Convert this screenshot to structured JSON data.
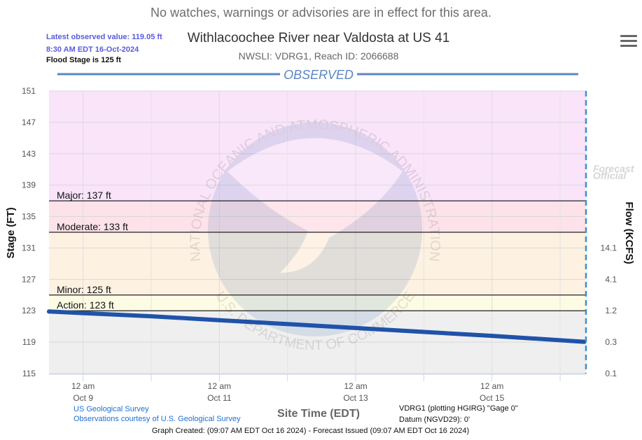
{
  "notice": "No watches, warnings or advisories are in effect for this area.",
  "header": {
    "latest_label": "Latest observed value: 119.05 ft",
    "latest_time": "8:30 AM EDT 16-Oct-2024",
    "flood_stage": "Flood Stage is 125 ft",
    "title": "Withlacoochee River near Valdosta at US 41",
    "subtitle": "NWSLI: VDRG1, Reach ID: 2066688"
  },
  "colors": {
    "observed": "#2052a8",
    "band_above": "#f9e4fa",
    "band_major": "#fde2e9",
    "band_moderate": "#fdf1e2",
    "band_minor": "#fdfbe4",
    "band_below": "#efefef",
    "forecast_line": "#3a8fd0",
    "title_observed": "#5b86c5"
  },
  "chart_data": {
    "type": "line",
    "observed_label": "OBSERVED",
    "forecast_label_1": "Forecast",
    "forecast_label_2": "Official",
    "y_left": {
      "label": "Stage (FT)",
      "ticks": [
        115,
        119,
        123,
        127,
        131,
        135,
        139,
        143,
        147,
        151
      ],
      "range": [
        115,
        151
      ]
    },
    "y_right": {
      "label": "Flow (KCFS)",
      "ticks": [
        {
          "stage": 131,
          "label": "14.1"
        },
        {
          "stage": 127,
          "label": "4.1"
        },
        {
          "stage": 123,
          "label": "1.2"
        },
        {
          "stage": 119,
          "label": "0.3"
        },
        {
          "stage": 115,
          "label": "0.1"
        }
      ]
    },
    "x": {
      "label": "Site Time (EDT)",
      "range_days": [
        "Oct 8 12:00",
        "Oct 16 09:07"
      ],
      "ticks": [
        {
          "time": "Oct 9 00:00",
          "line1": "12 am",
          "line2": "Oct 9"
        },
        {
          "time": "Oct 11 00:00",
          "line1": "12 am",
          "line2": "Oct 11"
        },
        {
          "time": "Oct 13 00:00",
          "line1": "12 am",
          "line2": "Oct 13"
        },
        {
          "time": "Oct 15 00:00",
          "line1": "12 am",
          "line2": "Oct 15"
        }
      ],
      "minor_ticks": [
        "Oct 10 00:00",
        "Oct 12 00:00",
        "Oct 14 00:00",
        "Oct 16 00:00"
      ]
    },
    "thresholds": [
      {
        "name": "Major",
        "label": "Major: 137 ft",
        "value": 137
      },
      {
        "name": "Moderate",
        "label": "Moderate: 133 ft",
        "value": 133
      },
      {
        "name": "Minor",
        "label": "Minor: 125 ft",
        "value": 125
      },
      {
        "name": "Action",
        "label": "Action: 123 ft",
        "value": 123
      }
    ],
    "observed": [
      {
        "time": "Oct 8 12:00",
        "stage": 122.9
      },
      {
        "time": "Oct 9 00:00",
        "stage": 122.7
      },
      {
        "time": "Oct 10 00:00",
        "stage": 122.3
      },
      {
        "time": "Oct 11 00:00",
        "stage": 121.8
      },
      {
        "time": "Oct 12 00:00",
        "stage": 121.3
      },
      {
        "time": "Oct 13 00:00",
        "stage": 120.8
      },
      {
        "time": "Oct 14 00:00",
        "stage": 120.3
      },
      {
        "time": "Oct 15 00:00",
        "stage": 119.8
      },
      {
        "time": "Oct 16 08:30",
        "stage": 119.05
      }
    ],
    "forecast_issued": "Oct 16 09:07"
  },
  "watermark": {
    "logo_text": "NOAA",
    "top_arc": "NATIONAL OCEANIC AND ATMOSPHERIC ADMINISTRATION",
    "bottom_arc": "U.S. DEPARTMENT OF COMMERCE"
  },
  "footer": {
    "source_1": "US Geological Survey",
    "source_2": "Observations courtesy of U.S. Geological Survey",
    "datum_1": "VDRG1 (plotting HGIRG) \"Gage 0\"",
    "datum_2": "Datum (NGVD29): 0'",
    "created": "Graph Created: (09:07 AM EDT Oct 16 2024) - Forecast Issued (09:07 AM EDT Oct 16 2024)"
  }
}
